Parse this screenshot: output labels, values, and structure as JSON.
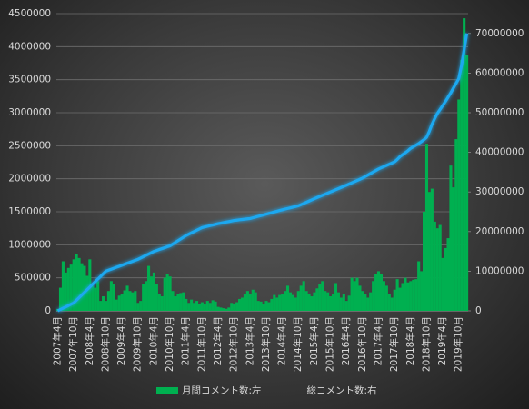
{
  "chart_data": {
    "type": "bar",
    "categories": [
      "2007年4月",
      null,
      null,
      null,
      null,
      null,
      "2007年10月",
      null,
      null,
      null,
      null,
      null,
      "2008年4月",
      null,
      null,
      null,
      null,
      null,
      "2008年10月",
      null,
      null,
      null,
      null,
      null,
      "2009年4月",
      null,
      null,
      null,
      null,
      null,
      "2009年10月",
      null,
      null,
      null,
      null,
      null,
      "2010年4月",
      null,
      null,
      null,
      null,
      null,
      "2010年10月",
      null,
      null,
      null,
      null,
      null,
      "2011年4月",
      null,
      null,
      null,
      null,
      null,
      "2011年10月",
      null,
      null,
      null,
      null,
      null,
      "2012年4月",
      null,
      null,
      null,
      null,
      null,
      "2012年10月",
      null,
      null,
      null,
      null,
      null,
      "2013年4月",
      null,
      null,
      null,
      null,
      null,
      "2013年10月",
      null,
      null,
      null,
      null,
      null,
      "2014年4月",
      null,
      null,
      null,
      null,
      null,
      "2014年10月",
      null,
      null,
      null,
      null,
      null,
      "2015年4月",
      null,
      null,
      null,
      null,
      null,
      "2015年10月",
      null,
      null,
      null,
      null,
      null,
      "2016年4月",
      null,
      null,
      null,
      null,
      null,
      "2016年10月",
      null,
      null,
      null,
      null,
      null,
      "2017年4月",
      null,
      null,
      null,
      null,
      null,
      "2017年10月",
      null,
      null,
      null,
      null,
      null,
      "2018年4月",
      null,
      null,
      null,
      null,
      null,
      "2018年10月",
      null,
      null,
      null,
      null,
      null,
      "2019年4月",
      null,
      null,
      null,
      null,
      null,
      "2019年10月",
      null,
      null,
      null
    ],
    "series": [
      {
        "name": "月間コメント数:左",
        "type": "bar",
        "color": "#00b050",
        "values": [
          30000,
          350000,
          750000,
          580000,
          650000,
          700000,
          780000,
          860000,
          800000,
          720000,
          680000,
          530000,
          780000,
          380000,
          350000,
          450000,
          150000,
          220000,
          150000,
          300000,
          450000,
          400000,
          170000,
          230000,
          250000,
          310000,
          380000,
          300000,
          280000,
          300000,
          120000,
          150000,
          400000,
          450000,
          680000,
          520000,
          580000,
          400000,
          250000,
          220000,
          500000,
          560000,
          520000,
          300000,
          220000,
          250000,
          270000,
          280000,
          180000,
          120000,
          170000,
          120000,
          150000,
          100000,
          130000,
          110000,
          150000,
          120000,
          160000,
          140000,
          60000,
          50000,
          40000,
          30000,
          50000,
          120000,
          110000,
          130000,
          180000,
          200000,
          250000,
          300000,
          260000,
          320000,
          280000,
          150000,
          140000,
          100000,
          150000,
          130000,
          180000,
          240000,
          200000,
          240000,
          260000,
          300000,
          380000,
          280000,
          240000,
          200000,
          300000,
          380000,
          450000,
          300000,
          260000,
          220000,
          280000,
          340000,
          400000,
          450000,
          300000,
          280000,
          220000,
          260000,
          420000,
          280000,
          200000,
          260000,
          150000,
          230000,
          500000,
          450000,
          500000,
          380000,
          300000,
          250000,
          200000,
          280000,
          450000,
          560000,
          600000,
          560000,
          450000,
          380000,
          250000,
          200000,
          320000,
          480000,
          350000,
          420000,
          500000,
          430000,
          450000,
          470000,
          480000,
          750000,
          600000,
          1500000,
          2530000,
          1800000,
          1850000,
          1350000,
          1250000,
          1300000,
          800000,
          950000,
          1100000,
          2200000,
          1870000,
          2600000,
          3200000,
          3800000,
          4430000,
          3870000
        ]
      },
      {
        "name": "総コメント数:右",
        "type": "line",
        "axis": "y2",
        "color": "#1ea8f0",
        "values": [
          0,
          330000,
          670000,
          1000000,
          1330000,
          1670000,
          2000000,
          2670000,
          3330000,
          4000000,
          4670000,
          5330000,
          6000000,
          6670000,
          7330000,
          8000000,
          8670000,
          9330000,
          10000000,
          10250000,
          10500000,
          10750000,
          11000000,
          11250000,
          11500000,
          11750000,
          12000000,
          12250000,
          12500000,
          12750000,
          13000000,
          13330000,
          13670000,
          14000000,
          14330000,
          14670000,
          15000000,
          15230000,
          15470000,
          15700000,
          15930000,
          16170000,
          16400000,
          16830000,
          17270000,
          17700000,
          18130000,
          18570000,
          19000000,
          19330000,
          19670000,
          20000000,
          20330000,
          20670000,
          21000000,
          21170000,
          21330000,
          21500000,
          21670000,
          21830000,
          22000000,
          22130000,
          22270000,
          22400000,
          22530000,
          22670000,
          22800000,
          22880000,
          22970000,
          23050000,
          23130000,
          23220000,
          23300000,
          23480000,
          23670000,
          23850000,
          24030000,
          24220000,
          24400000,
          24580000,
          24770000,
          24950000,
          25130000,
          25320000,
          25500000,
          25670000,
          25830000,
          26000000,
          26170000,
          26330000,
          26500000,
          26800000,
          27100000,
          27400000,
          27700000,
          28000000,
          28300000,
          28580000,
          28870000,
          29150000,
          29430000,
          29720000,
          30000000,
          30280000,
          30570000,
          30850000,
          31130000,
          31420000,
          31700000,
          32000000,
          32300000,
          32600000,
          32900000,
          33200000,
          33500000,
          33880000,
          34270000,
          34650000,
          35030000,
          35420000,
          35800000,
          36100000,
          36400000,
          36700000,
          37000000,
          37300000,
          37600000,
          38200000,
          38900000,
          39400000,
          39900000,
          40400000,
          41000000,
          41400000,
          41800000,
          42200000,
          42700000,
          43200000,
          43800000,
          45300000,
          47100000,
          48500000,
          49800000,
          50800000,
          51800000,
          52800000,
          53900000,
          55000000,
          56200000,
          57400000,
          58600000,
          61800000,
          65800000,
          70000000
        ]
      }
    ],
    "ylim": [
      0,
      4500000
    ],
    "yticks": [
      0,
      500000,
      1000000,
      1500000,
      2000000,
      2500000,
      3000000,
      3500000,
      4000000,
      4500000
    ],
    "y2lim": [
      0,
      75000000
    ],
    "y2ticks": [
      0,
      10000000,
      20000000,
      30000000,
      40000000,
      50000000,
      60000000,
      70000000
    ],
    "grid": true,
    "legend": "bottom"
  }
}
